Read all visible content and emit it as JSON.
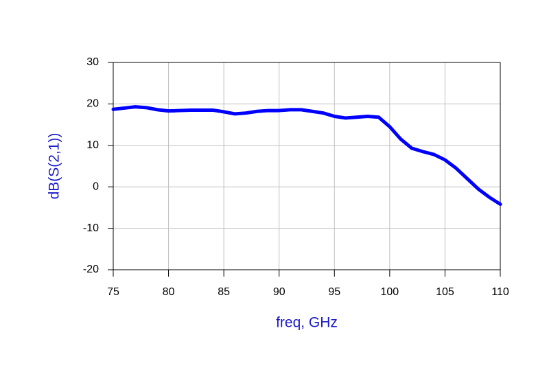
{
  "chart_data": {
    "type": "line",
    "xlabel": "freq, GHz",
    "ylabel": "dB(S(2,1))",
    "x": [
      75,
      76,
      77,
      78,
      79,
      80,
      81,
      82,
      83,
      84,
      85,
      86,
      87,
      88,
      89,
      90,
      91,
      92,
      93,
      94,
      95,
      96,
      97,
      98,
      99,
      100,
      101,
      102,
      103,
      104,
      105,
      106,
      107,
      108,
      109,
      110
    ],
    "series": [
      {
        "name": "dB(S(2,1))",
        "color": "#0000ff",
        "values": [
          18.7,
          19.0,
          19.3,
          19.1,
          18.6,
          18.3,
          18.4,
          18.5,
          18.5,
          18.5,
          18.1,
          17.6,
          17.8,
          18.2,
          18.4,
          18.4,
          18.6,
          18.6,
          18.2,
          17.8,
          17.0,
          16.6,
          16.8,
          17.0,
          16.8,
          14.5,
          11.5,
          9.3,
          8.5,
          7.8,
          6.5,
          4.5,
          2.0,
          -0.5,
          -2.5,
          -4.2
        ]
      }
    ],
    "xlim": [
      75,
      110
    ],
    "xticks": [
      75,
      80,
      85,
      90,
      95,
      100,
      105,
      110
    ],
    "ylim": [
      -20,
      30
    ],
    "yticks": [
      -20,
      -10,
      0,
      10,
      20,
      30
    ],
    "grid": true
  }
}
